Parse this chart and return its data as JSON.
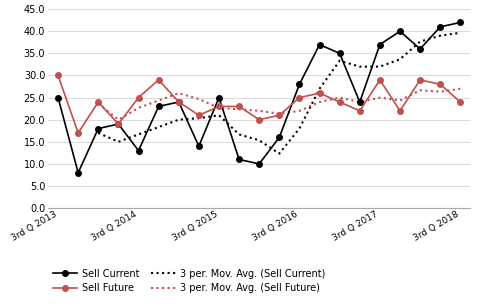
{
  "sell_current": [
    25,
    8,
    18,
    19,
    13,
    23,
    24,
    14,
    25,
    11,
    10,
    16,
    28,
    37,
    35,
    24,
    37,
    40,
    36,
    41,
    42
  ],
  "sell_future": [
    30,
    17,
    24,
    19,
    25,
    29,
    24,
    21,
    23,
    23,
    20,
    21,
    25,
    26,
    24,
    22,
    29,
    22,
    29,
    28,
    24
  ],
  "n_points": 21,
  "tick_positions": [
    0,
    4,
    8,
    12,
    16,
    20
  ],
  "tick_labels": [
    "3rd Q 2013",
    "3rd Q 2014",
    "3rd Q 2015",
    "3rd Q 2016",
    "3rd Q 2017",
    "3rd Q 2018"
  ],
  "ylim": [
    0,
    45
  ],
  "yticks": [
    0.0,
    5.0,
    10.0,
    15.0,
    20.0,
    25.0,
    30.0,
    35.0,
    40.0,
    45.0
  ],
  "sell_current_color": "#000000",
  "sell_future_color": "#c0504d",
  "background_color": "#ffffff",
  "grid_color": "#d9d9d9"
}
